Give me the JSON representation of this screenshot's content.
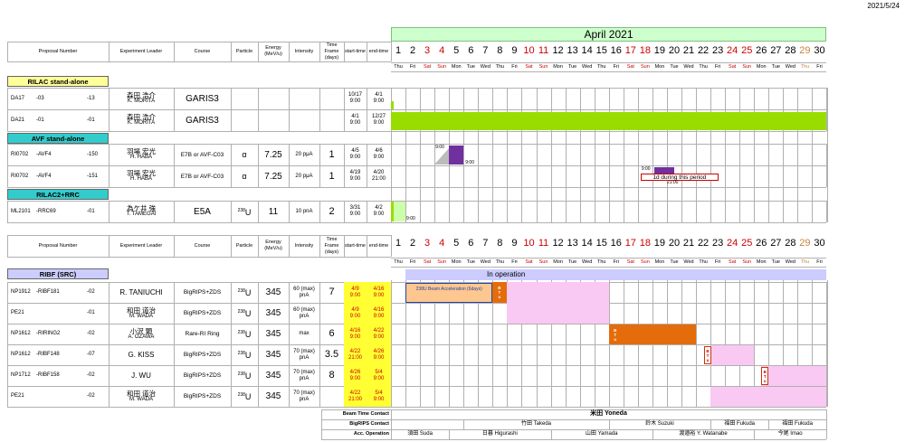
{
  "page_date": "2021/5/24",
  "calendar_title": "April 2021",
  "days": [
    {
      "n": "1",
      "d": "Thu",
      "c": ""
    },
    {
      "n": "2",
      "d": "Fri",
      "c": ""
    },
    {
      "n": "3",
      "d": "Sat",
      "c": "red"
    },
    {
      "n": "4",
      "d": "Sun",
      "c": "red"
    },
    {
      "n": "5",
      "d": "Mon",
      "c": ""
    },
    {
      "n": "6",
      "d": "Tue",
      "c": ""
    },
    {
      "n": "7",
      "d": "Wed",
      "c": ""
    },
    {
      "n": "8",
      "d": "Thu",
      "c": ""
    },
    {
      "n": "9",
      "d": "Fri",
      "c": ""
    },
    {
      "n": "10",
      "d": "Sat",
      "c": "red"
    },
    {
      "n": "11",
      "d": "Sun",
      "c": "red"
    },
    {
      "n": "12",
      "d": "Mon",
      "c": ""
    },
    {
      "n": "13",
      "d": "Tue",
      "c": ""
    },
    {
      "n": "14",
      "d": "Wed",
      "c": ""
    },
    {
      "n": "15",
      "d": "Thu",
      "c": ""
    },
    {
      "n": "16",
      "d": "Fri",
      "c": ""
    },
    {
      "n": "17",
      "d": "Sat",
      "c": "red"
    },
    {
      "n": "18",
      "d": "Sun",
      "c": "red"
    },
    {
      "n": "19",
      "d": "Mon",
      "c": ""
    },
    {
      "n": "20",
      "d": "Tue",
      "c": ""
    },
    {
      "n": "21",
      "d": "Wed",
      "c": ""
    },
    {
      "n": "22",
      "d": "Thu",
      "c": ""
    },
    {
      "n": "23",
      "d": "Fri",
      "c": ""
    },
    {
      "n": "24",
      "d": "Sat",
      "c": "red"
    },
    {
      "n": "25",
      "d": "Sun",
      "c": "red"
    },
    {
      "n": "26",
      "d": "Mon",
      "c": ""
    },
    {
      "n": "27",
      "d": "Tue",
      "c": ""
    },
    {
      "n": "28",
      "d": "Wed",
      "c": ""
    },
    {
      "n": "29",
      "d": "Thu",
      "c": "orange"
    },
    {
      "n": "30",
      "d": "Fri",
      "c": ""
    }
  ],
  "headers": {
    "proposal": "Proposal Number",
    "leader": "Experiment Leader",
    "course": "Course",
    "particle": "Particle",
    "energy": "Energy (MeV/u)",
    "intensity": "Intensity",
    "timeframe": "Time Frame (days)",
    "start": "start-time",
    "end": "end-time"
  },
  "sections_top": {
    "rilac": "RILAC stand-alone",
    "avf": "AVF stand-alone",
    "rilac2": "RILAC2+RRC"
  },
  "rows_top": [
    {
      "p1": "DA17",
      "p2": "-03",
      "p3": "-13",
      "lj": "森田 浩介",
      "le": "K. MORITA",
      "course": "GARIS3",
      "part": "",
      "en": "",
      "int": "",
      "tf": "",
      "st1": "10/17",
      "st2": "9:00",
      "et1": "4/1",
      "et2": "9:00"
    },
    {
      "p1": "DA21",
      "p2": "-01",
      "p3": "-01",
      "lj": "森田 浩介",
      "le": "K. MORITA",
      "course": "GARIS3",
      "part": "",
      "en": "",
      "int": "",
      "tf": "",
      "st1": "4/1",
      "st2": "9:00",
      "et1": "12/27",
      "et2": "9:00"
    },
    {
      "p1": "RI0702",
      "p2": "-AVF4",
      "p3": "-150",
      "lj": "羽場 宏光",
      "le": "H. HABA",
      "course": "E7B or AVF-C03",
      "part": "α",
      "en": "7.25",
      "int": "20 pμA",
      "tf": "1",
      "st1": "4/5",
      "st2": "9:00",
      "et1": "4/6",
      "et2": "9:00"
    },
    {
      "p1": "RI0702",
      "p2": "-AVF4",
      "p3": "-151",
      "lj": "羽場 宏光",
      "le": "H. HABA",
      "course": "E7B or AVF-C03",
      "part": "α",
      "en": "7.25",
      "int": "20 pμA",
      "tf": "1",
      "st1": "4/19",
      "st2": "9:00",
      "et1": "4/20",
      "et2": "21:00"
    },
    {
      "p1": "ML2101",
      "p2": "-RRC69",
      "p3": "-01",
      "lj": "為ケ井 強",
      "le": "T. TAMEGAI",
      "course": "E5A",
      "part": "238U",
      "en": "11",
      "int": "10 pnA",
      "tf": "2",
      "st1": "3/31",
      "st2": "9:00",
      "et1": "4/2",
      "et2": "9:00"
    }
  ],
  "top_annotations": {
    "t1": "9:00",
    "t2": "9:00",
    "t3": "9:00",
    "t4": "21:00",
    "t5": "9:00",
    "note": "1d during this period"
  },
  "section_ribf": "RIBF (SRC)",
  "in_operation": "In operation",
  "u_beam": "238U Beam Acceleration (6days)",
  "btu": [
    "B",
    "T",
    "u"
  ],
  "rows_ribf": [
    {
      "p1": "NP1912",
      "p2": "-RIBF181",
      "p3": "-02",
      "lj": "",
      "le": "R. TANIUCHI",
      "course": "BigRIPS+ZDS",
      "part": "238U",
      "en": "345",
      "int": "60 (max) pnA",
      "tf": "7",
      "st1": "4/9",
      "st2": "9:00",
      "et1": "4/16",
      "et2": "9:00"
    },
    {
      "p1": "PE21",
      "p2": "",
      "p3": "-01",
      "lj": "和田 道治",
      "le": "M. WADA",
      "course": "BigRIPS+ZDS",
      "part": "238U",
      "en": "345",
      "int": "60 (max) pnA",
      "tf": "",
      "st1": "4/9",
      "st2": "9:00",
      "et1": "4/16",
      "et2": "9:00"
    },
    {
      "p1": "NP1612",
      "p2": "-RIRING2",
      "p3": "-02",
      "lj": "小沢 顕",
      "le": "A. OZAWA",
      "course": "Rare-RI Ring",
      "part": "238U",
      "en": "345",
      "int": "max",
      "tf": "6",
      "st1": "4/16",
      "st2": "9:00",
      "et1": "4/22",
      "et2": "9:00"
    },
    {
      "p1": "NP1612",
      "p2": "-RIBF148",
      "p3": "-07",
      "lj": "",
      "le": "G. KISS",
      "course": "BigRIPS+ZDS",
      "part": "238U",
      "en": "345",
      "int": "70 (max) pnA",
      "tf": "3.5",
      "st1": "4/22",
      "st2": "21:00",
      "et1": "4/26",
      "et2": "9:00"
    },
    {
      "p1": "NP1712",
      "p2": "-RIBF158",
      "p3": "-02",
      "lj": "",
      "le": "J. WU",
      "course": "BigRIPS+ZDS",
      "part": "238U",
      "en": "345",
      "int": "70 (max) pnA",
      "tf": "8",
      "st1": "4/26",
      "st2": "9:00",
      "et1": "5/4",
      "et2": "9:00"
    },
    {
      "p1": "PE21",
      "p2": "",
      "p3": "-02",
      "lj": "和田 道治",
      "le": "M. WADA",
      "course": "BigRIPS+ZDS",
      "part": "238U",
      "en": "345",
      "int": "70 (max) pnA",
      "tf": "",
      "st1": "4/22",
      "st2": "21:00",
      "et1": "5/4",
      "et2": "9:00"
    }
  ],
  "contacts": {
    "beam_label": "Beam Time Contact",
    "bigrips_label": "BigRIPS Contact",
    "acc_label": "Acc. Operation",
    "beam": "米田 Yoneda",
    "bigrips": [
      "竹田 Takeda",
      "鈴木 Suzuki",
      "福田 Fukuda",
      "福田 Fukuda"
    ],
    "acc": [
      "須田 Suda",
      "日暮 Higurashi",
      "山田 Yamada",
      "渡邉裕 Y. Watanabe",
      "今尾 Imao"
    ]
  },
  "colors": {
    "green": "#99dd00",
    "purple": "#7030a0",
    "lightgreen": "#ccffaa",
    "peach": "#fdc78f",
    "orange": "#e46c0a",
    "pink": "#f9c9f3",
    "lavender": "#ccccff",
    "cyan": "#33cccc",
    "yellowlabel": "#ffff99"
  }
}
